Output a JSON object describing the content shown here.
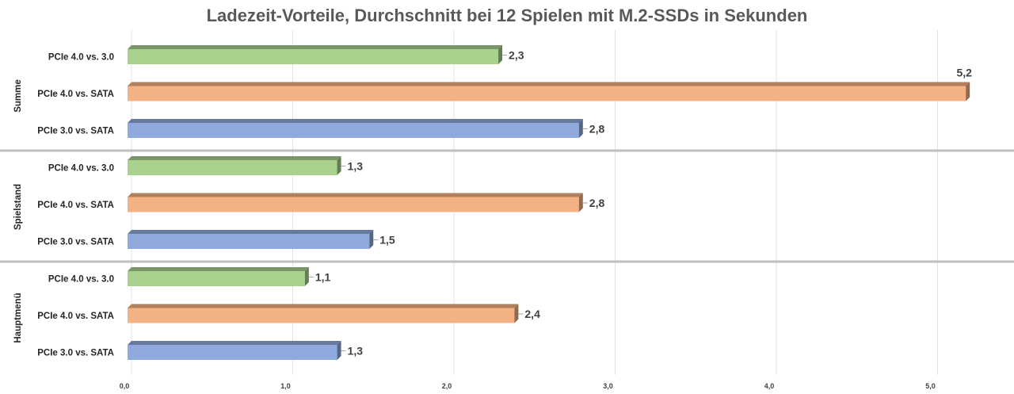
{
  "chart_data": {
    "type": "bar",
    "orientation": "horizontal",
    "style": "3d",
    "title": "Ladezeit-Vorteile, Durchschnitt bei 12 Spielen mit M.2-SSDs in Sekunden",
    "xlim": [
      0,
      5.2
    ],
    "x_ticks": [
      "0,0",
      "1,0",
      "2,0",
      "3,0",
      "4,0",
      "5,0"
    ],
    "x_tick_values": [
      0,
      1,
      2,
      3,
      4,
      5
    ],
    "grid": true,
    "legend": "none",
    "groups": [
      {
        "name": "Summe",
        "bars": [
          {
            "label": "PCIe 4.0 vs. 3.0",
            "value": 2.3,
            "value_label": "2,3",
            "color": "#a9d18e"
          },
          {
            "label": "PCIe 4.0 vs. SATA",
            "value": 5.2,
            "value_label": "5,2",
            "color": "#f4b183"
          },
          {
            "label": "PCIe 3.0 vs. SATA",
            "value": 2.8,
            "value_label": "2,8",
            "color": "#8faadc"
          }
        ]
      },
      {
        "name": "Spielstand",
        "bars": [
          {
            "label": "PCIe 4.0 vs. 3.0",
            "value": 1.3,
            "value_label": "1,3",
            "color": "#a9d18e"
          },
          {
            "label": "PCIe 4.0 vs. SATA",
            "value": 2.8,
            "value_label": "2,8",
            "color": "#f4b183"
          },
          {
            "label": "PCIe 3.0 vs. SATA",
            "value": 1.5,
            "value_label": "1,5",
            "color": "#8faadc"
          }
        ]
      },
      {
        "name": "Hauptmenü",
        "bars": [
          {
            "label": "PCIe 4.0 vs. 3.0",
            "value": 1.1,
            "value_label": "1,1",
            "color": "#a9d18e"
          },
          {
            "label": "PCIe 4.0 vs. SATA",
            "value": 2.4,
            "value_label": "2,4",
            "color": "#f4b183"
          },
          {
            "label": "PCIe 3.0 vs. SATA",
            "value": 1.3,
            "value_label": "1,3",
            "color": "#8faadc"
          }
        ]
      }
    ]
  }
}
